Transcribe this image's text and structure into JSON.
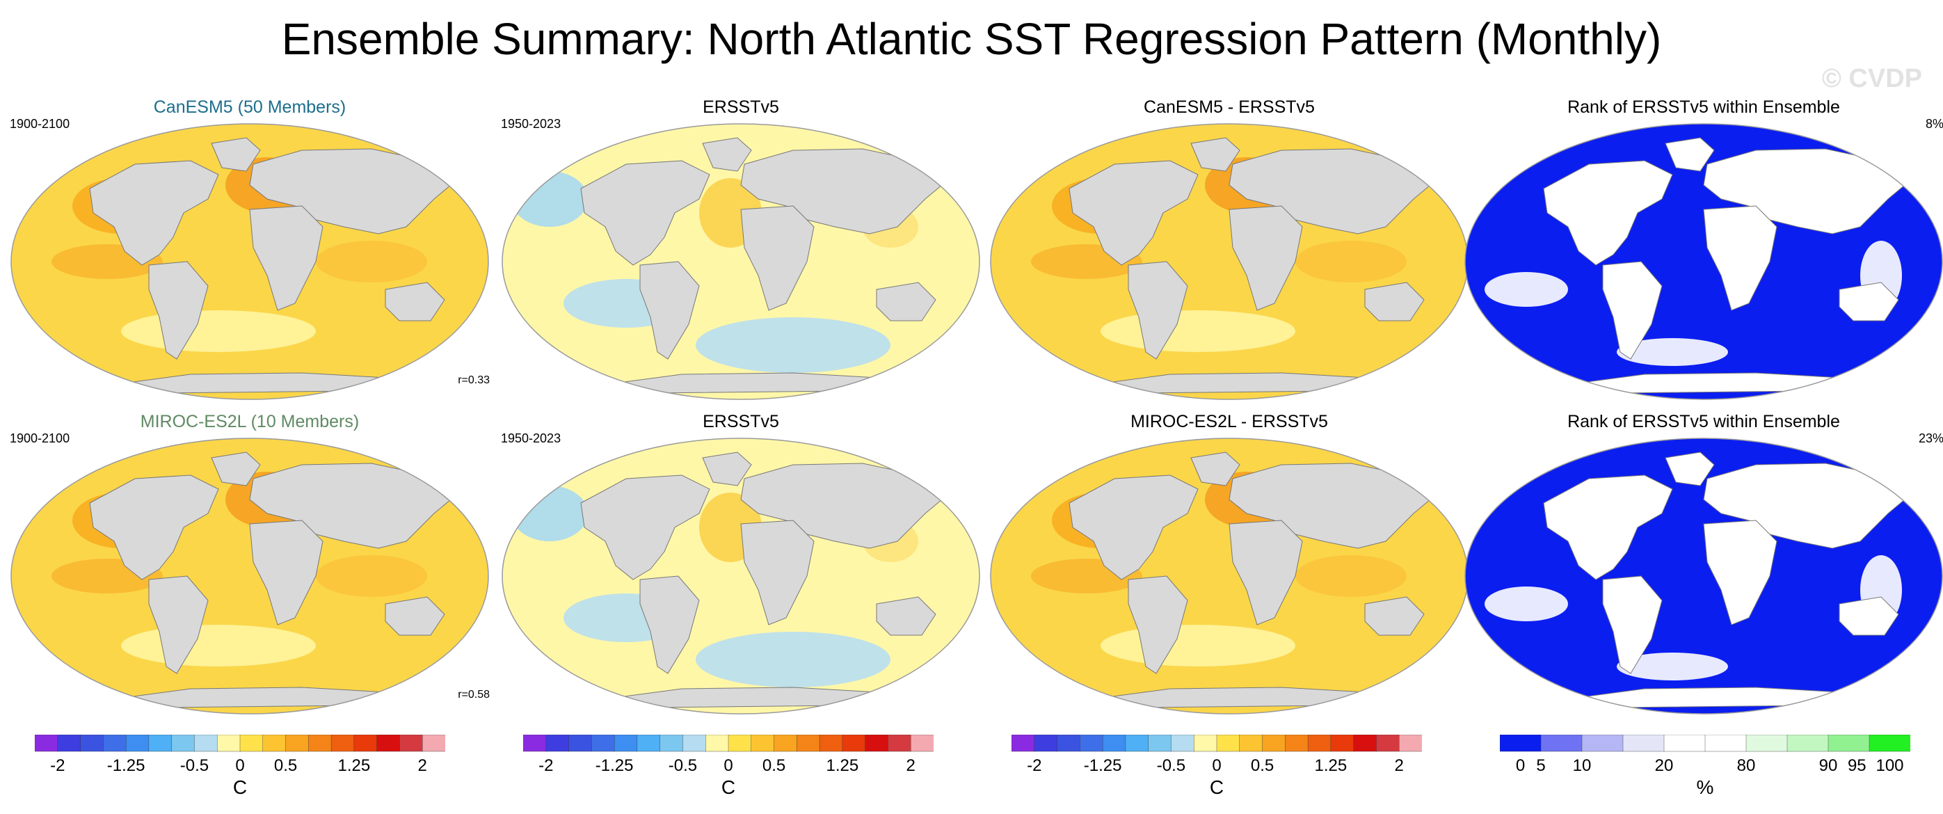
{
  "title": "Ensemble Summary: North Atlantic SST Regression Pattern (Monthly)",
  "watermark": "© CVDP",
  "rows": [
    {
      "model": "CanESM5 (50 Members)",
      "model_period": "1900-2100",
      "correlation": "r=0.33",
      "obs_title": "ERSSTv5",
      "obs_period": "1950-2023",
      "diff_title": "CanESM5 - ERSSTv5",
      "rank_title": "Rank of ERSSTv5 within Ensemble",
      "rank_pct": "8%"
    },
    {
      "model": "MIROC-ES2L (10 Members)",
      "model_period": "1900-2100",
      "correlation": "r=0.58",
      "obs_title": "ERSSTv5",
      "obs_period": "1950-2023",
      "diff_title": "MIROC-ES2L - ERSSTv5",
      "rank_title": "Rank of ERSSTv5 within Ensemble",
      "rank_pct": "23%"
    }
  ],
  "colorbars": {
    "sst": {
      "colors": [
        "#8a2be2",
        "#3d3de0",
        "#3a53e0",
        "#3f6fe8",
        "#3d8ef0",
        "#4fb0f5",
        "#7cc7f0",
        "#b5dcf0",
        "#fff8a8",
        "#ffe24a",
        "#fcc430",
        "#f8a420",
        "#f48418",
        "#ee6010",
        "#e83a0a",
        "#d80f0f",
        "#d43a40",
        "#f4a9b1"
      ],
      "labels": [
        "-2",
        "-1.25",
        "-0.5",
        "0",
        "0.5",
        "1.25",
        "2"
      ],
      "label_positions": [
        1,
        4,
        7,
        9,
        11,
        14,
        17
      ],
      "unit": "C"
    },
    "rank": {
      "colors": [
        "#0b1ef0",
        "#6f72f2",
        "#b5b6f4",
        "#e4e6f8",
        "#ffffff",
        "#ffffff",
        "#e0fae0",
        "#c2f7c2",
        "#91f191",
        "#22f022"
      ],
      "labels": [
        "0",
        "5",
        "10",
        "20",
        "80",
        "90",
        "95",
        "100"
      ],
      "label_positions": [
        0.5,
        1,
        2,
        4,
        6,
        8,
        8.7,
        9.5
      ],
      "unit": "%"
    }
  }
}
